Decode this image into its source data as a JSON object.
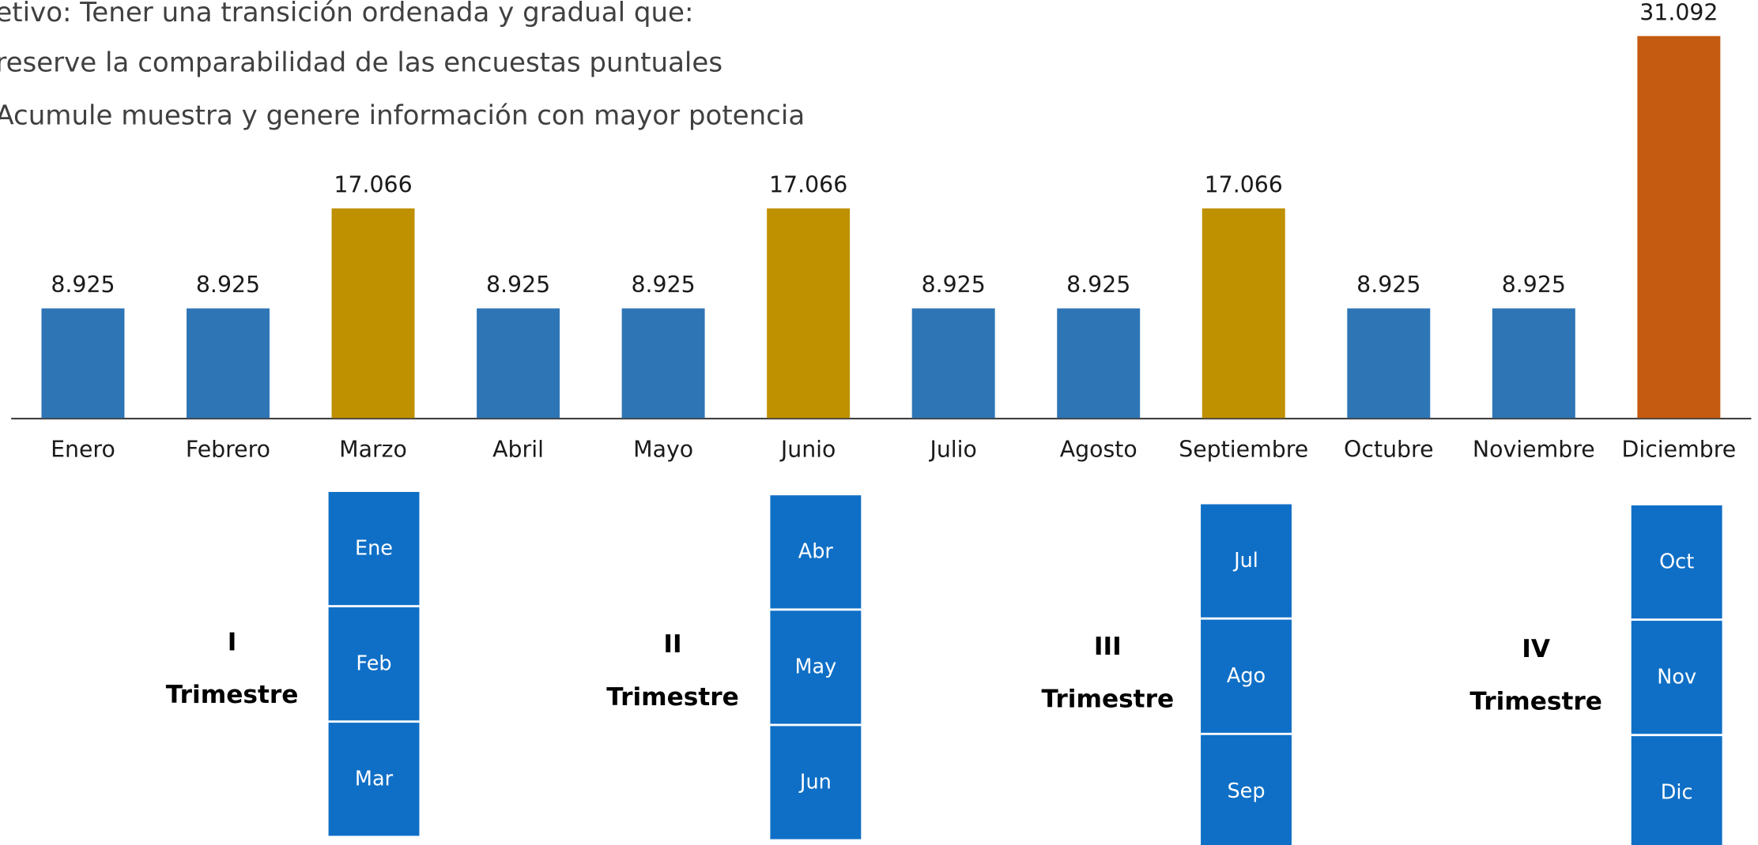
{
  "intro": [
    "etivo: Tener una transición ordenada y gradual que:",
    "reserve la comparabilidad de las encuestas puntuales",
    "Acumule muestra y genere información con mayor potencia"
  ],
  "chart_data": {
    "type": "bar",
    "categories": [
      "Enero",
      "Febrero",
      "Marzo",
      "Abril",
      "Mayo",
      "Junio",
      "Julio",
      "Agosto",
      "Septiembre",
      "Octubre",
      "Noviembre",
      "Diciembre"
    ],
    "values": [
      8925,
      8925,
      17066,
      8925,
      8925,
      17066,
      8925,
      8925,
      17066,
      8925,
      8925,
      31092
    ],
    "value_labels": [
      "8.925",
      "8.925",
      "17.066",
      "8.925",
      "8.925",
      "17.066",
      "8.925",
      "8.925",
      "17.066",
      "8.925",
      "8.925",
      "31.092"
    ],
    "colors": [
      "#2e75b6",
      "#2e75b6",
      "#bf9000",
      "#2e75b6",
      "#2e75b6",
      "#bf9000",
      "#2e75b6",
      "#2e75b6",
      "#bf9000",
      "#2e75b6",
      "#2e75b6",
      "#c55a11"
    ]
  },
  "quarters": [
    {
      "numeral": "I",
      "label": "Trimestre",
      "months": [
        "Ene",
        "Feb",
        "Mar"
      ]
    },
    {
      "numeral": "II",
      "label": "Trimestre",
      "months": [
        "Abr",
        "May",
        "Jun"
      ]
    },
    {
      "numeral": "III",
      "label": "Trimestre",
      "months": [
        "Jul",
        "Ago",
        "Sep"
      ]
    },
    {
      "numeral": "IV",
      "label": "Trimestre",
      "months": [
        "Oct",
        "Nov",
        "Dic"
      ]
    }
  ]
}
